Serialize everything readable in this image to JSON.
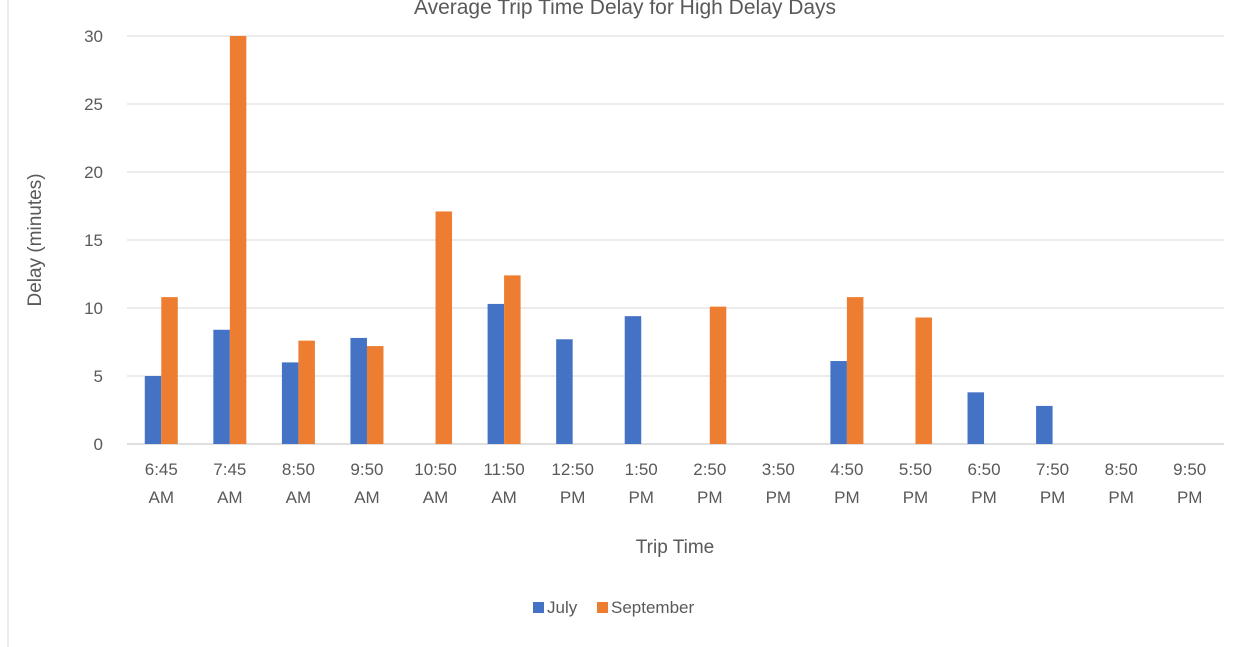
{
  "chart_data": {
    "type": "bar",
    "title": "Average Trip Time Delay for High Delay Days",
    "xlabel": "Trip Time",
    "ylabel": "Delay (minutes)",
    "ylim": [
      0,
      30
    ],
    "yticks": [
      0,
      5,
      10,
      15,
      20,
      25,
      30
    ],
    "grid": true,
    "legend_position": "bottom",
    "categories": [
      [
        "6:45",
        "AM"
      ],
      [
        "7:45",
        "AM"
      ],
      [
        "8:50",
        "AM"
      ],
      [
        "9:50",
        "AM"
      ],
      [
        "10:50",
        "AM"
      ],
      [
        "11:50",
        "AM"
      ],
      [
        "12:50",
        "PM"
      ],
      [
        "1:50",
        "PM"
      ],
      [
        "2:50",
        "PM"
      ],
      [
        "3:50",
        "PM"
      ],
      [
        "4:50",
        "PM"
      ],
      [
        "5:50",
        "PM"
      ],
      [
        "6:50",
        "PM"
      ],
      [
        "7:50",
        "PM"
      ],
      [
        "8:50",
        "PM"
      ],
      [
        "9:50",
        "PM"
      ]
    ],
    "series": [
      {
        "name": "July",
        "color": "#4472C4",
        "values": [
          5.0,
          8.4,
          6.0,
          7.8,
          0,
          10.3,
          7.7,
          9.4,
          0,
          0,
          6.1,
          0,
          3.8,
          2.8,
          0,
          0
        ]
      },
      {
        "name": "September",
        "color": "#ED7D31",
        "values": [
          10.8,
          30.0,
          7.6,
          7.2,
          17.1,
          12.4,
          0,
          0,
          10.1,
          0,
          10.8,
          9.3,
          0,
          0,
          0,
          0
        ]
      }
    ]
  }
}
